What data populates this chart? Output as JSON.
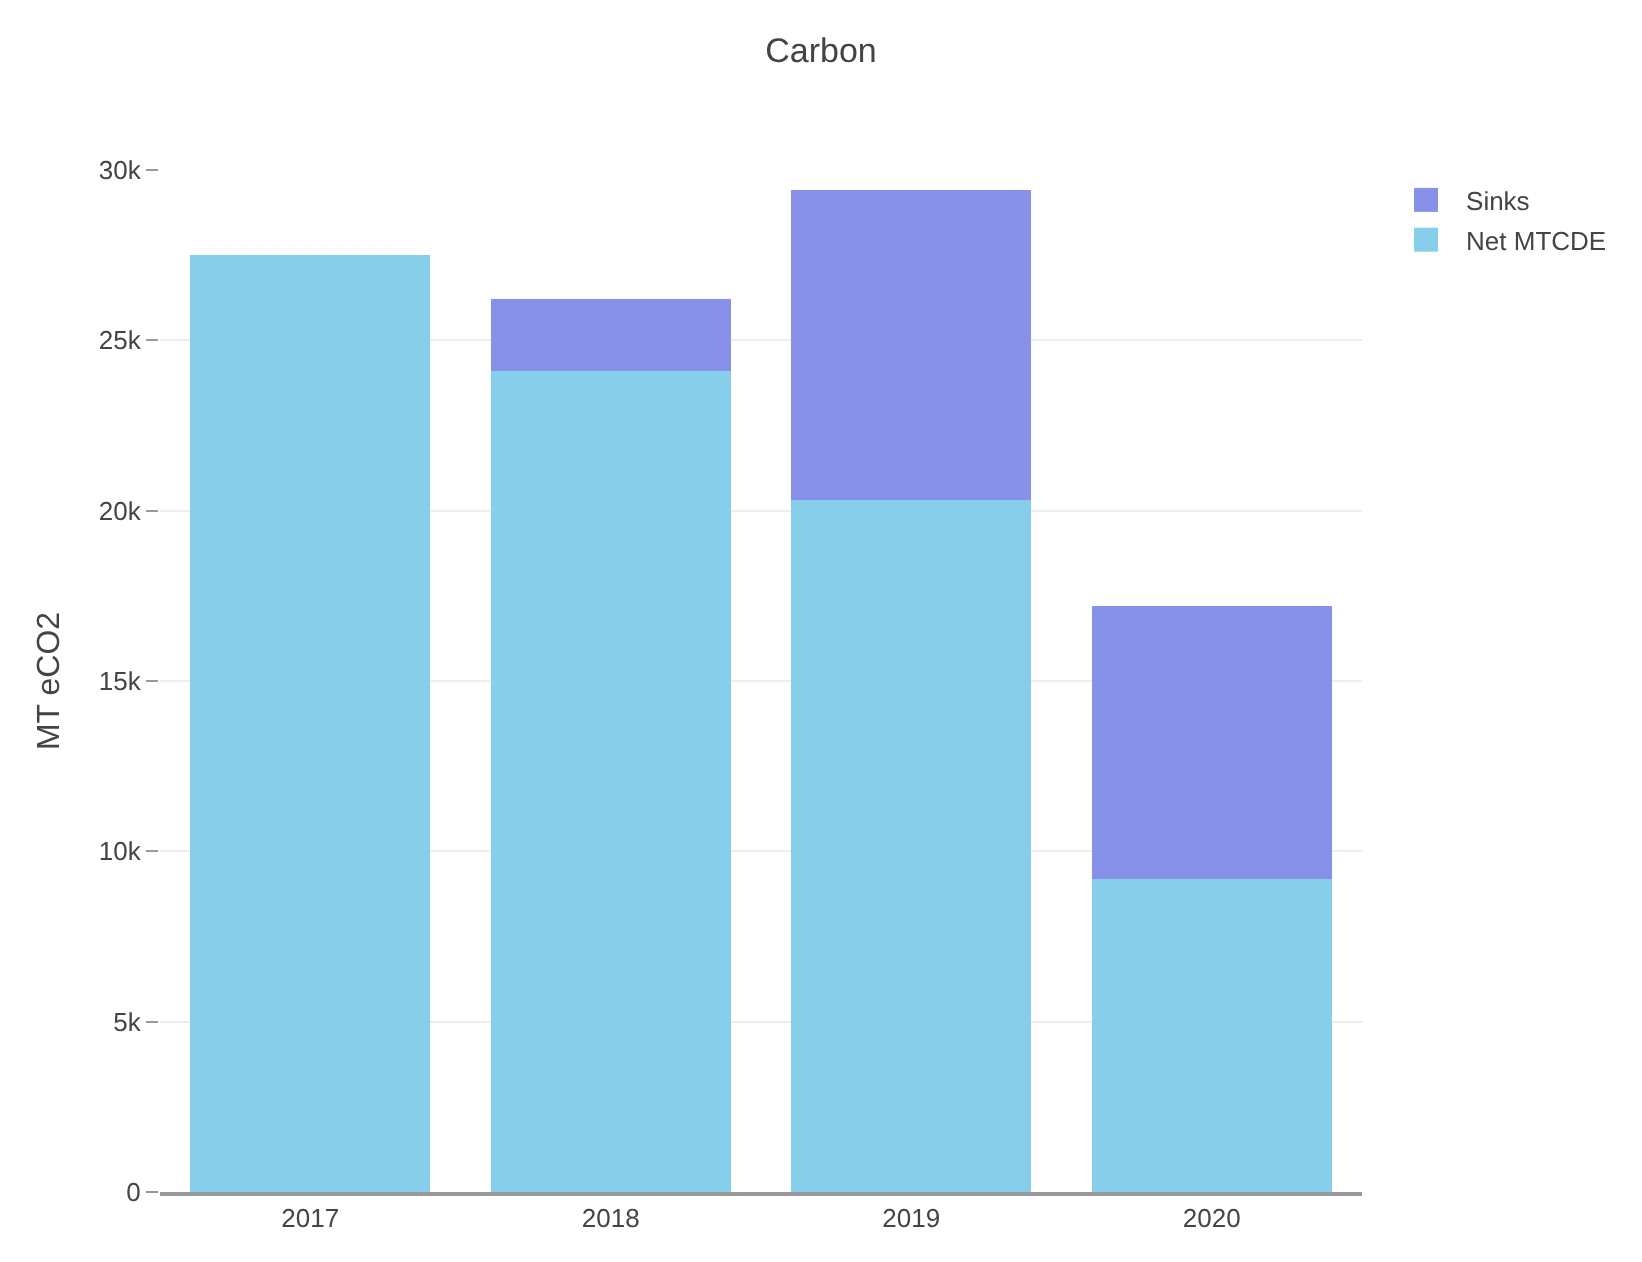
{
  "chart_data": {
    "type": "bar",
    "title": "Carbon",
    "ylabel": "MT eCO2",
    "categories": [
      "2017",
      "2018",
      "2019",
      "2020"
    ],
    "stacked": true,
    "series": [
      {
        "name": "Net MTCDE",
        "color": "#87ceeb",
        "values": [
          27500,
          24100,
          20300,
          9200
        ]
      },
      {
        "name": "Sinks",
        "color": "#8891ea",
        "values": [
          0,
          2100,
          9100,
          8000
        ]
      }
    ],
    "ylim": [
      0,
      30000
    ],
    "yticks": [
      {
        "value": 0,
        "label": "0"
      },
      {
        "value": 5000,
        "label": "5k"
      },
      {
        "value": 10000,
        "label": "10k"
      },
      {
        "value": 15000,
        "label": "15k"
      },
      {
        "value": 20000,
        "label": "20k"
      },
      {
        "value": 25000,
        "label": "25k"
      },
      {
        "value": 30000,
        "label": "30k"
      }
    ],
    "grid": "y",
    "legend": "top right"
  }
}
